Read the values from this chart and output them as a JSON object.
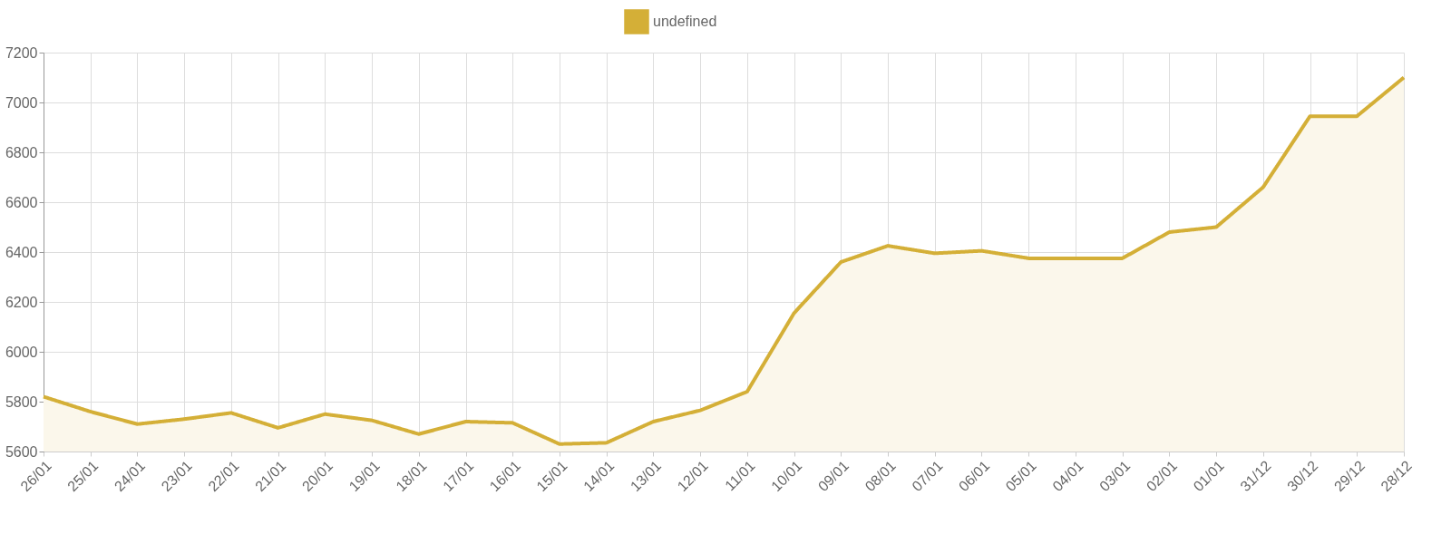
{
  "chart_data": {
    "type": "area",
    "categories": [
      "26/01",
      "25/01",
      "24/01",
      "23/01",
      "22/01",
      "21/01",
      "20/01",
      "19/01",
      "18/01",
      "17/01",
      "16/01",
      "15/01",
      "14/01",
      "13/01",
      "12/01",
      "11/01",
      "10/01",
      "09/01",
      "08/01",
      "07/01",
      "06/01",
      "05/01",
      "04/01",
      "03/01",
      "02/01",
      "01/01",
      "31/12",
      "30/12",
      "29/12",
      "28/12"
    ],
    "series": [
      {
        "name": "undefined",
        "color": "#d4af37",
        "values": [
          5820,
          5760,
          5710,
          5730,
          5755,
          5695,
          5750,
          5725,
          5670,
          5720,
          5715,
          5630,
          5635,
          5720,
          5765,
          5840,
          6155,
          6360,
          6425,
          6395,
          6405,
          6375,
          6375,
          6375,
          6480,
          6500,
          6660,
          6945,
          6945,
          7100
        ]
      }
    ],
    "ylim": [
      5600,
      7200
    ],
    "yticks": [
      5600,
      5800,
      6000,
      6200,
      6400,
      6600,
      6800,
      7000,
      7200
    ],
    "grid": true,
    "legend": "top",
    "line_style": "solid",
    "marker": "none"
  }
}
